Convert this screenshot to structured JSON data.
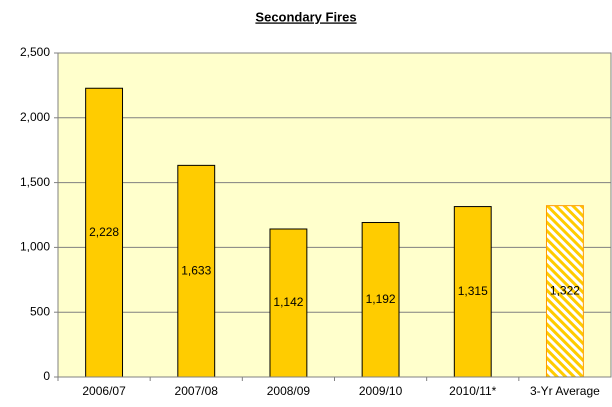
{
  "chart_data": {
    "type": "bar",
    "title": "Secondary Fires",
    "categories": [
      "2006/07",
      "2007/08",
      "2008/09",
      "2009/10",
      "2010/11*",
      "3-Yr Average"
    ],
    "values": [
      2228,
      1633,
      1142,
      1192,
      1315,
      1322
    ],
    "value_labels": [
      "2,228",
      "1,633",
      "1,142",
      "1,192",
      "1,315",
      "1,322"
    ],
    "color": "#FFCC00",
    "edgecolors": [
      "#000000",
      "#000000",
      "#000000",
      "#000000",
      "#000000",
      "#FF9900"
    ],
    "hatched": [
      false,
      false,
      false,
      false,
      false,
      true
    ],
    "plot_background": "#FFFFCC",
    "ylim": [
      0,
      2500
    ],
    "yticks": [
      0,
      500,
      {
        "value": 1000,
        "label": "1,000"
      },
      {
        "value": 1500,
        "label": "1,500"
      },
      {
        "value": 2000,
        "label": "2,000"
      },
      {
        "value": 2500,
        "label": "2,500"
      }
    ],
    "grid": true
  }
}
